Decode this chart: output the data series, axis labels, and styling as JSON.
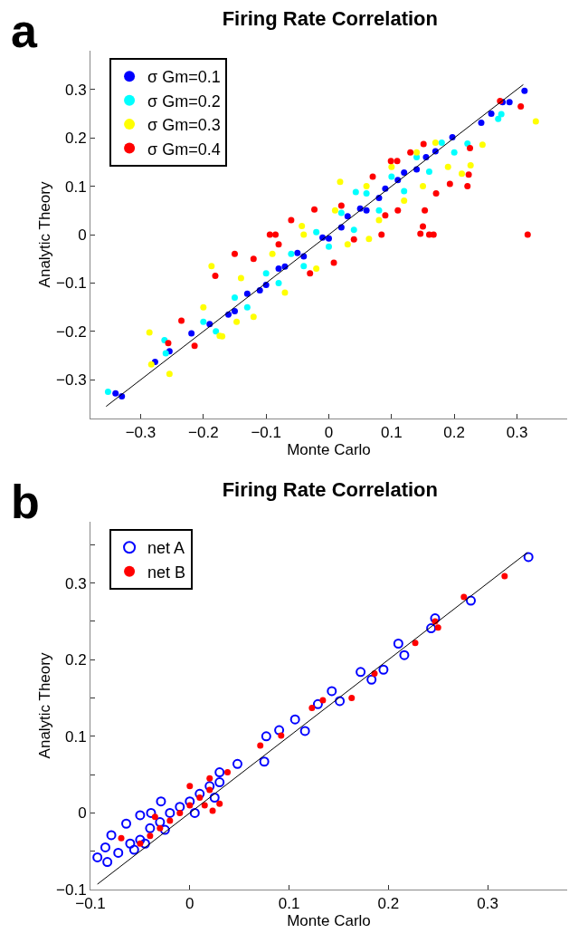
{
  "chart_data": [
    {
      "type": "scatter",
      "title": "Firing Rate Correlation",
      "xlabel": "Monte Carlo",
      "ylabel": "Analytic Theory",
      "annotations": [
        "a"
      ],
      "xlim": [
        -0.38,
        0.38
      ],
      "ylim": [
        -0.38,
        0.38
      ],
      "xticks": [
        -0.3,
        -0.2,
        -0.1,
        0,
        0.1,
        0.2,
        0.3
      ],
      "yticks": [
        -0.3,
        -0.2,
        -0.1,
        0,
        0.1,
        0.2,
        0.3
      ],
      "grid": false,
      "legend": "top left",
      "marker": "circle",
      "series": [
        {
          "name": "σ Gm=0.1",
          "color": "#0000ff",
          "x": [
            -0.33,
            -0.34,
            -0.277,
            -0.254,
            -0.219,
            -0.19,
            -0.16,
            -0.13,
            -0.1,
            -0.07,
            -0.04,
            -0.01,
            0.02,
            0.05,
            0.08,
            0.11,
            0.14,
            0.17,
            -0.15,
            -0.08,
            0,
            0.06,
            0.12,
            0.155,
            -0.05,
            0.03,
            0.09,
            -0.11,
            0.197,
            0.243,
            0.259,
            0.277,
            0.288,
            0.312
          ],
          "values": [
            -0.334,
            -0.328,
            -0.263,
            -0.241,
            -0.204,
            -0.185,
            -0.165,
            -0.122,
            -0.104,
            -0.066,
            -0.045,
            -0.006,
            0.015,
            0.054,
            0.076,
            0.113,
            0.135,
            0.172,
            -0.158,
            -0.07,
            -0.008,
            0.05,
            0.128,
            0.16,
            -0.038,
            0.038,
            0.095,
            -0.115,
            0.201,
            0.231,
            0.25,
            0.274,
            0.274,
            0.297
          ]
        },
        {
          "name": "σ Gm=0.2",
          "color": "#00ffff",
          "x": [
            -0.352,
            -0.26,
            -0.262,
            -0.2,
            -0.18,
            -0.15,
            -0.13,
            -0.1,
            -0.08,
            -0.06,
            -0.04,
            -0.02,
            0,
            0.02,
            0.04,
            0.06,
            0.08,
            0.1,
            0.12,
            0.14,
            0.16,
            0.18,
            0.2,
            0.221,
            0.043,
            0.27,
            0.275
          ],
          "values": [
            -0.325,
            -0.245,
            -0.218,
            -0.18,
            -0.2,
            -0.13,
            -0.15,
            -0.08,
            -0.1,
            -0.04,
            -0.065,
            0.005,
            -0.025,
            0.045,
            0.01,
            0.085,
            0.05,
            0.12,
            0.09,
            0.16,
            0.13,
            0.19,
            0.17,
            0.188,
            0.088,
            0.239,
            0.249
          ]
        },
        {
          "name": "σ Gm=0.3",
          "color": "#ffff00",
          "x": [
            -0.2,
            -0.17,
            -0.14,
            -0.12,
            -0.09,
            -0.07,
            -0.04,
            -0.02,
            0.01,
            0.03,
            0.06,
            0.08,
            0.1,
            0.12,
            0.14,
            0.15,
            0.17,
            0.19,
            0.33,
            -0.286,
            -0.283,
            -0.254,
            0.018,
            0.245,
            0.226,
            0.212,
            -0.187,
            -0.174,
            -0.147,
            0.064,
            -0.043
          ],
          "values": [
            -0.15,
            -0.21,
            -0.09,
            -0.17,
            -0.04,
            -0.12,
            0,
            -0.07,
            0.05,
            -0.02,
            0.1,
            0.03,
            0.14,
            0.07,
            0.17,
            0.1,
            0.19,
            0.14,
            0.234,
            -0.202,
            -0.268,
            -0.288,
            0.109,
            0.186,
            0.143,
            0.126,
            -0.065,
            -0.209,
            -0.18,
            -0.009,
            0.018
          ]
        },
        {
          "name": "σ Gm=0.4",
          "color": "#ff0000",
          "x": [
            0.317,
            0.146,
            0.16,
            0.167,
            0.15,
            0.306,
            0.151,
            0.221,
            0.223,
            0.193,
            0.171,
            0.153,
            -0.15,
            -0.181,
            -0.214,
            -0.235,
            -0.256,
            -0.094,
            -0.085,
            0.008,
            0.099,
            0.109,
            0.273,
            0.225,
            0.084,
            -0.023,
            -0.12,
            -0.06,
            -0.03,
            0.04,
            0.07,
            0.11,
            0.13,
            -0.08,
            0.02,
            0.09
          ],
          "values": [
            0,
            0.002,
            0,
            0,
            0.017,
            0.265,
            0.187,
            0.1,
            0.124,
            0.105,
            0.085,
            0.05,
            -0.04,
            -0.085,
            -0.23,
            -0.178,
            -0.224,
            0,
            0,
            -0.058,
            0.152,
            0.152,
            0.276,
            0.179,
            0,
            0.052,
            -0.05,
            0.03,
            -0.08,
            -0.01,
            0.12,
            0.05,
            0.17,
            -0.02,
            0.06,
            0.04
          ]
        },
        {
          "type": "line",
          "color": "#000000",
          "x": [
            -0.355,
            0.31
          ],
          "values": [
            -0.355,
            0.31
          ],
          "marker": "none"
        }
      ]
    },
    {
      "type": "scatter",
      "title": "Firing Rate Correlation",
      "xlabel": "Monte Carlo",
      "ylabel": "Analytic Theory",
      "annotations": [
        "b"
      ],
      "xlim": [
        -0.1,
        0.38
      ],
      "ylim": [
        -0.1,
        0.38
      ],
      "xticks": [
        -0.1,
        0,
        0.1,
        0.2,
        0.3
      ],
      "yticks": [
        -0.1,
        {
          "value": -0.05,
          "label": null
        },
        0,
        {
          "value": 0.05,
          "label": null
        },
        0.1,
        {
          "value": 0.15,
          "label": null
        },
        0.2,
        {
          "value": 0.25,
          "label": null
        },
        0.3,
        {
          "value": 0.35,
          "label": null
        }
      ],
      "grid": false,
      "legend": "top left",
      "series": [
        {
          "name": "net A",
          "color": "#0000ff",
          "marker": "circle-open",
          "x": [
            0.341,
            0.283,
            0.247,
            0.243,
            0.21,
            0.216,
            0.195,
            0.183,
            0.172,
            0.151,
            0.143,
            0.129,
            0.116,
            0.106,
            0.077,
            0.075,
            0.09,
            0.048,
            0.03,
            -0.029,
            -0.05,
            -0.064,
            -0.079,
            -0.085,
            -0.093,
            -0.083,
            -0.072,
            -0.056,
            -0.039,
            -0.05,
            -0.04,
            -0.03,
            -0.02,
            -0.01,
            0,
            0.01,
            0.02,
            0.03,
            -0.045,
            -0.025,
            0.005,
            0.025,
            -0.06
          ],
          "values": [
            0.334,
            0.277,
            0.254,
            0.241,
            0.221,
            0.206,
            0.187,
            0.174,
            0.184,
            0.146,
            0.159,
            0.142,
            0.107,
            0.122,
            0.1,
            0.067,
            0.108,
            0.064,
            0.053,
            0.015,
            -0.003,
            -0.014,
            -0.029,
            -0.045,
            -0.058,
            -0.064,
            -0.052,
            -0.048,
            0,
            -0.035,
            -0.02,
            -0.012,
            0,
            0.008,
            0.015,
            0.025,
            0.035,
            0.04,
            -0.04,
            -0.022,
            0,
            0.02,
            -0.04
          ]
        },
        {
          "name": "net B",
          "color": "#ff0000",
          "marker": "circle",
          "x": [
            0.317,
            0.276,
            0.25,
            0.247,
            0.227,
            0.186,
            0.163,
            0.134,
            0.123,
            0.092,
            0.071,
            0.038,
            0.023,
            -0.069,
            -0.05,
            -0.04,
            -0.03,
            -0.02,
            -0.01,
            0,
            0.01,
            0.02,
            0.02,
            0.03,
            0,
            -0.035,
            0.015
          ],
          "values": [
            0.309,
            0.282,
            0.242,
            0.25,
            0.222,
            0.182,
            0.15,
            0.147,
            0.137,
            0.101,
            0.088,
            0.053,
            0.003,
            -0.033,
            -0.04,
            -0.03,
            -0.02,
            -0.01,
            0,
            0.01,
            0.02,
            0.03,
            0.045,
            0.012,
            0.035,
            -0.005,
            0.01
          ]
        },
        {
          "type": "line",
          "color": "#000000",
          "x": [
            -0.093,
            0.34
          ],
          "values": [
            -0.093,
            0.34
          ],
          "marker": "none"
        }
      ]
    }
  ]
}
